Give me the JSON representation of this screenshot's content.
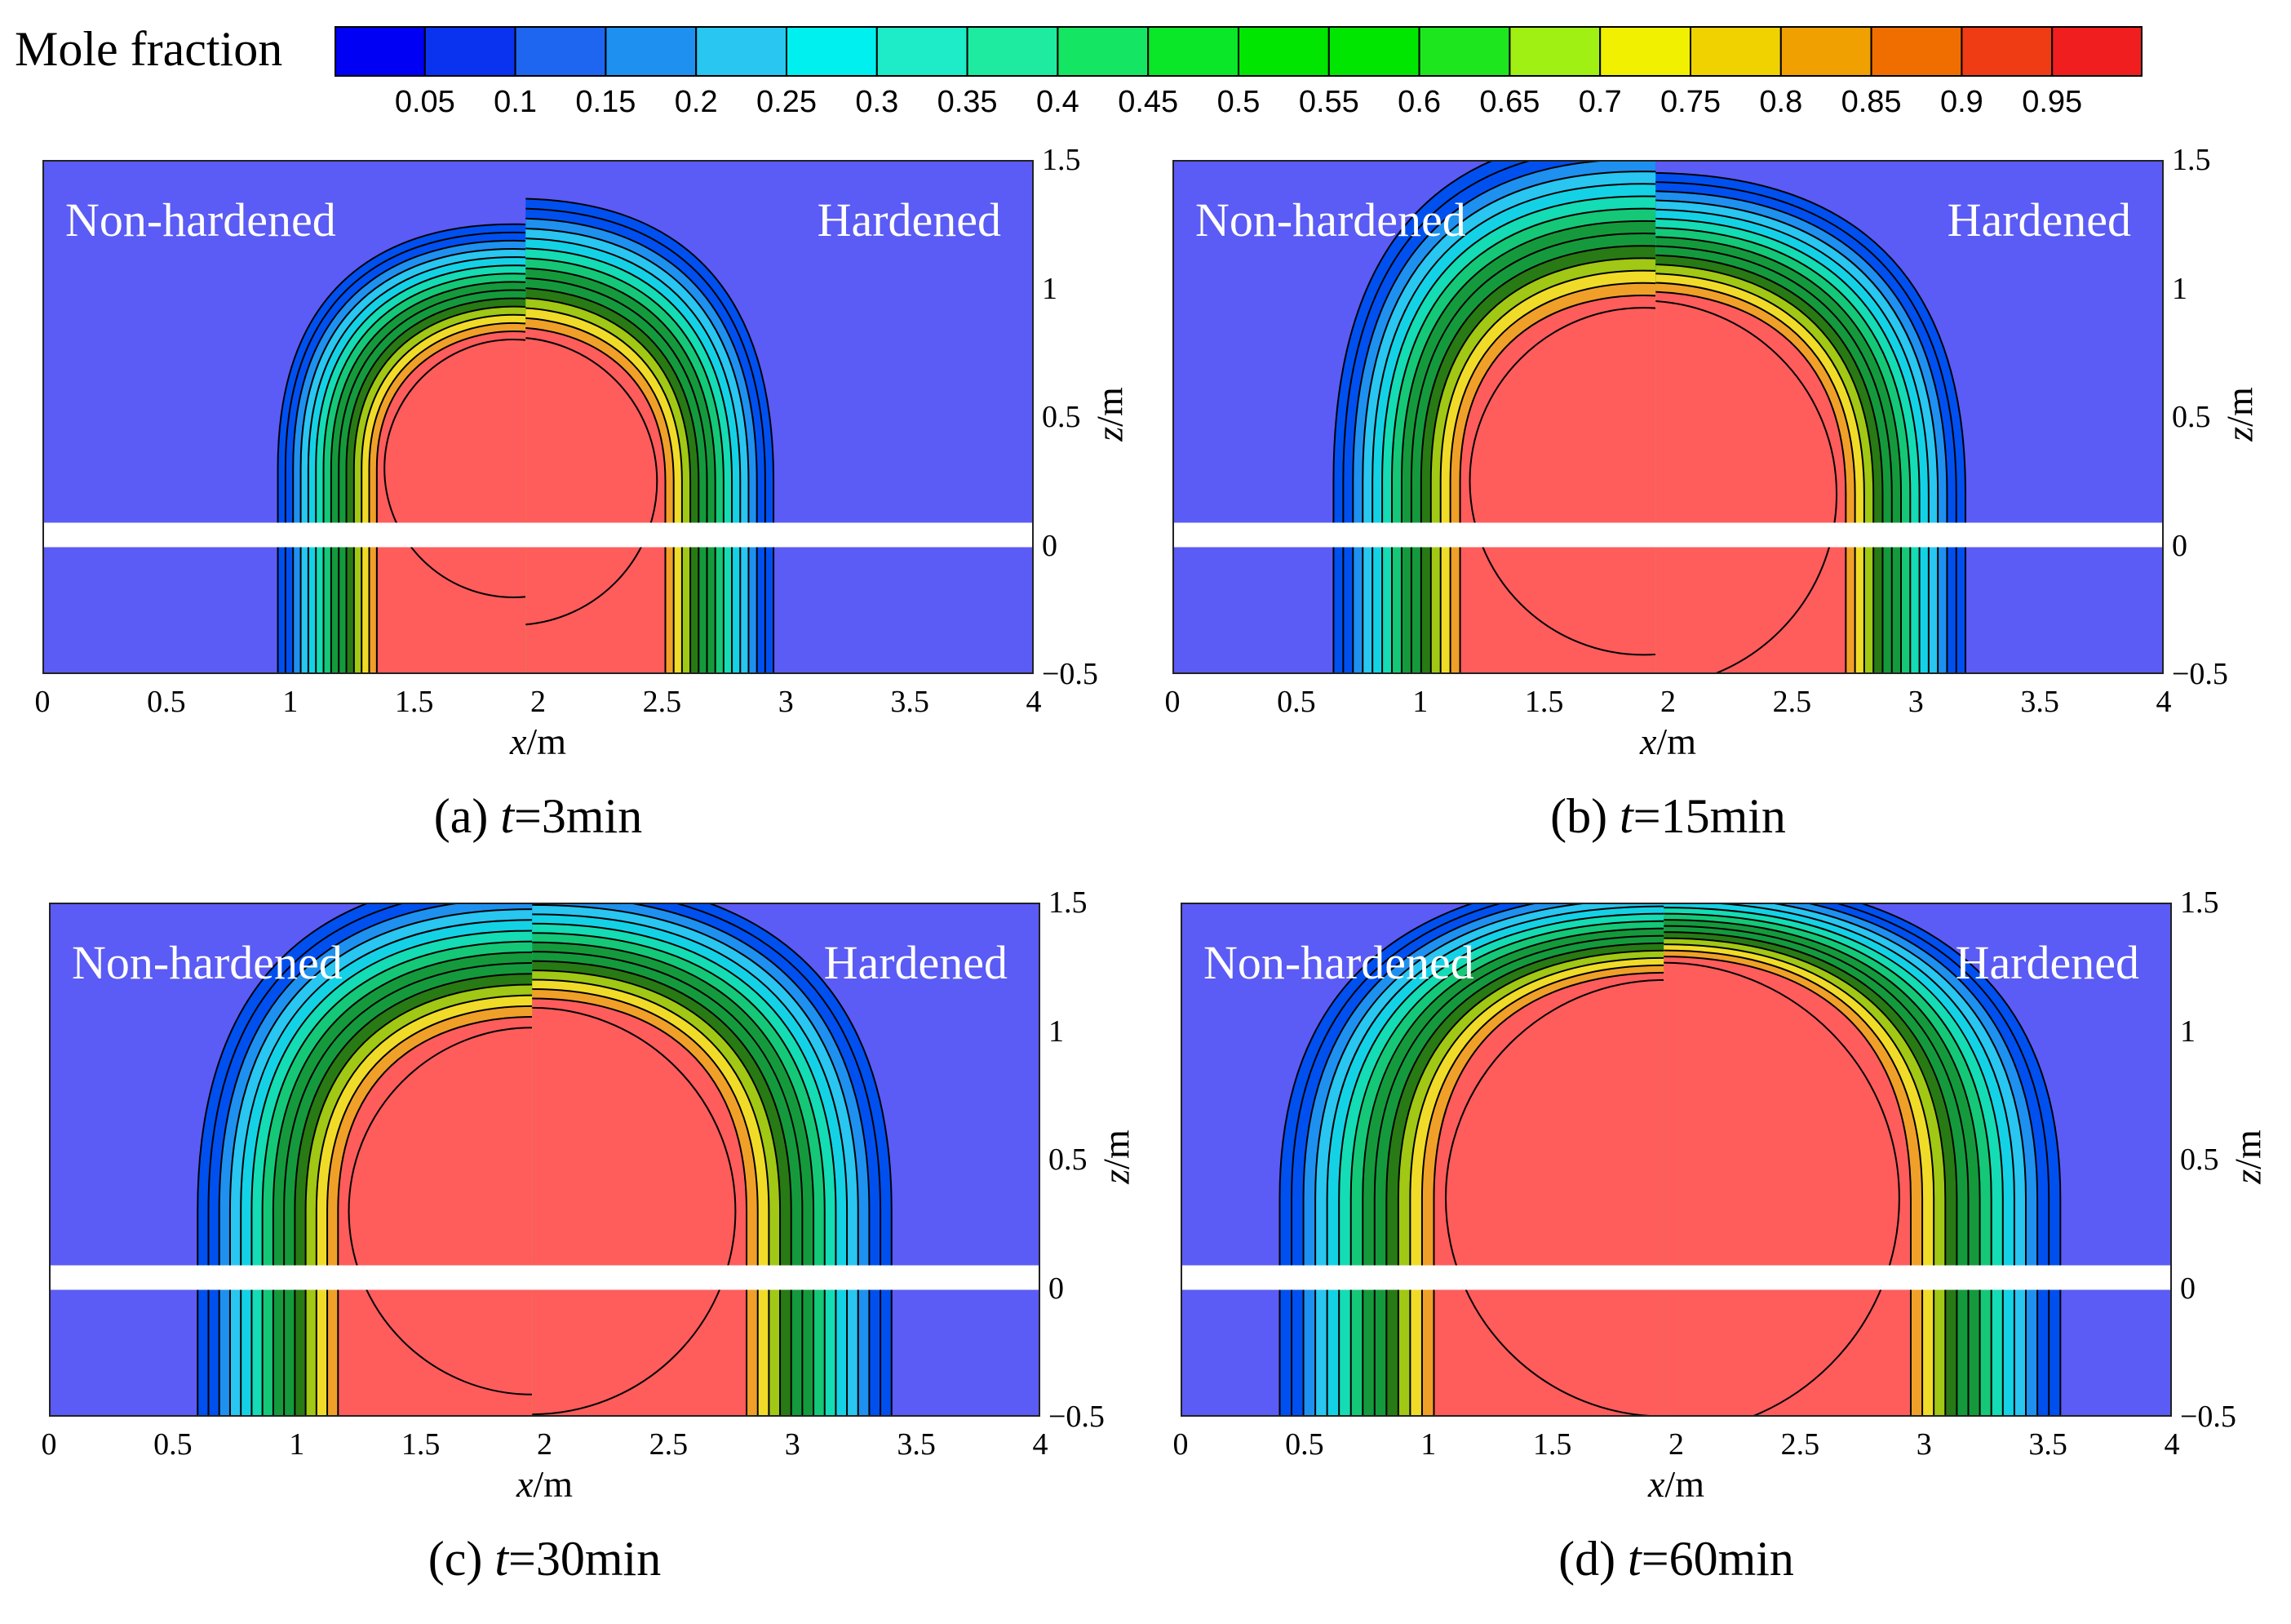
{
  "chart_data": {
    "type": "heatmap",
    "title": "Mole fraction",
    "colorbar": {
      "label": "Mole fraction",
      "levels": [
        "0.05",
        "0.1",
        "0.15",
        "0.2",
        "0.25",
        "0.3",
        "0.35",
        "0.4",
        "0.45",
        "0.5",
        "0.55",
        "0.6",
        "0.65",
        "0.7",
        "0.75",
        "0.8",
        "0.85",
        "0.9",
        "0.95"
      ],
      "colors": [
        "#0000F5",
        "#0A33F0",
        "#1E66F0",
        "#1E90F0",
        "#28C6F0",
        "#00F0F0",
        "#1EEBC8",
        "#1EEBA0",
        "#14E664",
        "#0AE628",
        "#00E600",
        "#00E600",
        "#1EE61E",
        "#A0F014",
        "#F0F000",
        "#F0D200",
        "#F0A000",
        "#F06E00",
        "#F03C14",
        "#F01E1E"
      ]
    },
    "region_labels": {
      "left": "Non-hardened",
      "right": "Hardened"
    },
    "xlabel_var": "x",
    "xlabel_unit": "/m",
    "zlabel_var": "z",
    "zlabel_unit": "/m",
    "xlim": [
      0,
      4
    ],
    "zlim": [
      -0.5,
      1.5
    ],
    "xticks": [
      "0",
      "0.5",
      "1",
      "1.5",
      "2",
      "2.5",
      "3",
      "3.5",
      "4"
    ],
    "zticks": [
      "−0.5",
      "0",
      "0.5",
      "1",
      "1.5"
    ],
    "ambient_color": "#5B5BF5",
    "core_color": "#FF5C5C",
    "panels": [
      {
        "caption_prefix": "(a) ",
        "caption_var": "t",
        "caption_value": "=3min",
        "time_min": 3,
        "left": {
          "cx": 1.9,
          "cz": 0.3,
          "r": 0.52,
          "plume_w": 0.95,
          "plume_top": 1.25
        },
        "right": {
          "cx": 1.9,
          "cz": 0.25,
          "r": 0.58,
          "plume_w": 1.05,
          "plume_top": 1.35
        }
      },
      {
        "caption_prefix": "(b) ",
        "caption_var": "t",
        "caption_value": "=15min",
        "time_min": 15,
        "left": {
          "cx": 1.9,
          "cz": 0.25,
          "r": 0.7,
          "plume_w": 1.25,
          "plume_top": 1.6
        },
        "right": {
          "cx": 1.9,
          "cz": 0.2,
          "r": 0.78,
          "plume_w": 1.3,
          "plume_top": 1.45
        }
      },
      {
        "caption_prefix": "(c) ",
        "caption_var": "t",
        "caption_value": "=30min",
        "time_min": 30,
        "left": {
          "cx": 1.95,
          "cz": 0.3,
          "r": 0.74,
          "plume_w": 1.35,
          "plume_top": 1.6
        },
        "right": {
          "cx": 1.95,
          "cz": 0.3,
          "r": 0.82,
          "plume_w": 1.45,
          "plume_top": 1.6
        }
      },
      {
        "caption_prefix": "(d) ",
        "caption_var": "t",
        "caption_value": "=60min",
        "time_min": 60,
        "left": {
          "cx": 1.95,
          "cz": 0.35,
          "r": 0.88,
          "plume_w": 1.55,
          "plume_top": 1.6
        },
        "right": {
          "cx": 1.95,
          "cz": 0.35,
          "r": 0.95,
          "plume_w": 1.6,
          "plume_top": 1.6
        }
      }
    ]
  }
}
